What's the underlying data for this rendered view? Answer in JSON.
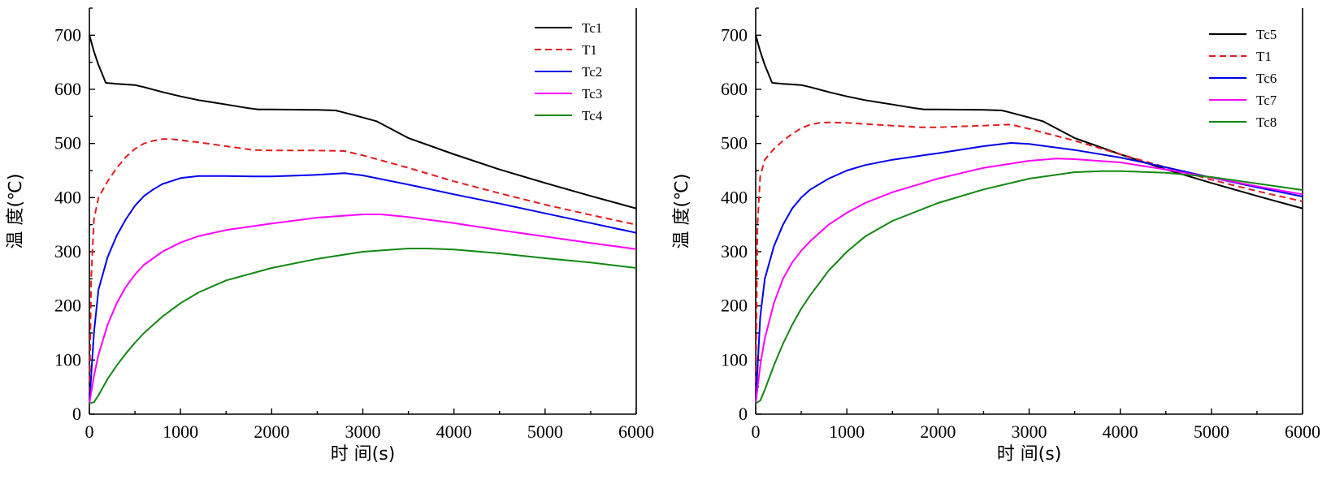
{
  "chart_data": [
    {
      "type": "line",
      "xlabel": "时 间(s)",
      "ylabel": "温 度(℃)",
      "xlim": [
        0,
        6000
      ],
      "ylim": [
        0,
        750
      ],
      "xticks": [
        0,
        1000,
        2000,
        3000,
        4000,
        5000,
        6000
      ],
      "yticks": [
        0,
        100,
        200,
        300,
        400,
        500,
        600,
        700
      ],
      "legend": "top-right",
      "grid": false,
      "series": [
        {
          "name": "Tc1",
          "color": "#000000",
          "dash": false,
          "x": [
            0,
            50,
            100,
            180,
            300,
            500,
            600,
            800,
            1000,
            1200,
            1500,
            1750,
            1850,
            2000,
            2500,
            2700,
            2750,
            3000,
            3150,
            3500,
            4000,
            4500,
            5000,
            5500,
            6000
          ],
          "y": [
            700,
            670,
            645,
            612,
            610,
            608,
            604,
            595,
            587,
            580,
            572,
            565,
            563,
            563,
            562,
            561,
            559,
            548,
            541,
            510,
            480,
            452,
            427,
            403,
            380
          ]
        },
        {
          "name": "T1",
          "color": "#e41a1c",
          "dash": true,
          "x": [
            0,
            20,
            50,
            100,
            200,
            300,
            400,
            500,
            600,
            700,
            800,
            900,
            1000,
            1200,
            1500,
            1800,
            2000,
            2500,
            2800,
            3000,
            3500,
            4000,
            4500,
            5000,
            5500,
            6000
          ],
          "y": [
            20,
            250,
            360,
            400,
            430,
            455,
            475,
            490,
            500,
            505,
            508,
            508,
            506,
            502,
            495,
            488,
            487,
            487,
            486,
            478,
            455,
            430,
            408,
            387,
            368,
            350
          ]
        },
        {
          "name": "Tc2",
          "color": "#0000ee",
          "dash": false,
          "x": [
            0,
            50,
            100,
            200,
            300,
            400,
            500,
            600,
            700,
            800,
            1000,
            1200,
            1500,
            1800,
            2000,
            2500,
            2800,
            3000,
            3500,
            4000,
            4500,
            5000,
            5500,
            6000
          ],
          "y": [
            20,
            150,
            230,
            290,
            330,
            360,
            385,
            403,
            415,
            425,
            436,
            440,
            440,
            439,
            439,
            442,
            445,
            441,
            424,
            406,
            389,
            371,
            353,
            335
          ]
        },
        {
          "name": "Tc3",
          "color": "#ff00ff",
          "dash": false,
          "x": [
            0,
            50,
            100,
            200,
            300,
            400,
            500,
            600,
            800,
            1000,
            1200,
            1500,
            2000,
            2500,
            3000,
            3200,
            3500,
            4000,
            4500,
            5000,
            5500,
            6000
          ],
          "y": [
            20,
            70,
            110,
            165,
            205,
            235,
            258,
            276,
            300,
            317,
            329,
            340,
            352,
            363,
            369,
            369,
            364,
            353,
            340,
            328,
            316,
            305
          ]
        },
        {
          "name": "Tc4",
          "color": "#118811",
          "dash": false,
          "x": [
            0,
            50,
            100,
            200,
            300,
            400,
            500,
            600,
            800,
            1000,
            1200,
            1500,
            2000,
            2500,
            3000,
            3500,
            3700,
            4000,
            4500,
            5000,
            5500,
            6000
          ],
          "y": [
            20,
            22,
            35,
            65,
            90,
            112,
            132,
            150,
            180,
            205,
            225,
            247,
            270,
            287,
            300,
            306,
            306,
            304,
            297,
            288,
            280,
            270
          ]
        }
      ]
    },
    {
      "type": "line",
      "xlabel": "时 间(s)",
      "ylabel": "温 度(℃)",
      "xlim": [
        0,
        6000
      ],
      "ylim": [
        0,
        750
      ],
      "xticks": [
        0,
        1000,
        2000,
        3000,
        4000,
        5000,
        6000
      ],
      "yticks": [
        0,
        100,
        200,
        300,
        400,
        500,
        600,
        700
      ],
      "legend": "top-right",
      "grid": false,
      "series": [
        {
          "name": "Tc5",
          "color": "#000000",
          "dash": false,
          "x": [
            0,
            50,
            100,
            180,
            300,
            500,
            600,
            800,
            1000,
            1200,
            1500,
            1750,
            1850,
            2000,
            2500,
            2700,
            2750,
            3000,
            3150,
            3500,
            4000,
            4500,
            5000,
            5500,
            6000
          ],
          "y": [
            700,
            670,
            645,
            612,
            610,
            608,
            604,
            595,
            587,
            580,
            572,
            565,
            563,
            563,
            562,
            561,
            559,
            548,
            541,
            510,
            480,
            452,
            427,
            403,
            380
          ]
        },
        {
          "name": "T1",
          "color": "#e41a1c",
          "dash": true,
          "x": [
            0,
            20,
            50,
            100,
            200,
            300,
            400,
            500,
            600,
            700,
            800,
            1000,
            1200,
            1500,
            1800,
            2000,
            2500,
            2800,
            3000,
            3500,
            4000,
            4500,
            5000,
            5500,
            6000
          ],
          "y": [
            20,
            350,
            440,
            470,
            490,
            505,
            518,
            528,
            535,
            538,
            539,
            538,
            536,
            533,
            530,
            530,
            533,
            535,
            527,
            505,
            480,
            456,
            433,
            412,
            393
          ]
        },
        {
          "name": "Tc6",
          "color": "#0000ee",
          "dash": false,
          "x": [
            0,
            50,
            100,
            200,
            300,
            400,
            500,
            600,
            800,
            1000,
            1200,
            1500,
            2000,
            2500,
            2800,
            3000,
            3500,
            4000,
            4500,
            5000,
            5500,
            6000
          ],
          "y": [
            20,
            180,
            250,
            310,
            350,
            380,
            400,
            415,
            435,
            450,
            460,
            470,
            482,
            495,
            501,
            499,
            488,
            474,
            456,
            437,
            419,
            402
          ]
        },
        {
          "name": "Tc7",
          "color": "#ff00ff",
          "dash": false,
          "x": [
            0,
            50,
            100,
            200,
            300,
            400,
            500,
            600,
            800,
            1000,
            1200,
            1500,
            2000,
            2500,
            3000,
            3300,
            3500,
            4000,
            4500,
            5000,
            5500,
            6000
          ],
          "y": [
            20,
            90,
            140,
            205,
            250,
            280,
            302,
            320,
            350,
            372,
            390,
            410,
            435,
            455,
            468,
            472,
            471,
            465,
            452,
            437,
            421,
            406
          ]
        },
        {
          "name": "Tc8",
          "color": "#118811",
          "dash": false,
          "x": [
            0,
            50,
            100,
            200,
            300,
            400,
            500,
            600,
            800,
            1000,
            1200,
            1500,
            2000,
            2500,
            3000,
            3500,
            3800,
            4000,
            4500,
            5000,
            5500,
            6000
          ],
          "y": [
            20,
            25,
            45,
            90,
            130,
            165,
            195,
            220,
            265,
            300,
            328,
            357,
            390,
            415,
            435,
            447,
            449,
            449,
            446,
            438,
            426,
            414
          ]
        }
      ]
    }
  ]
}
